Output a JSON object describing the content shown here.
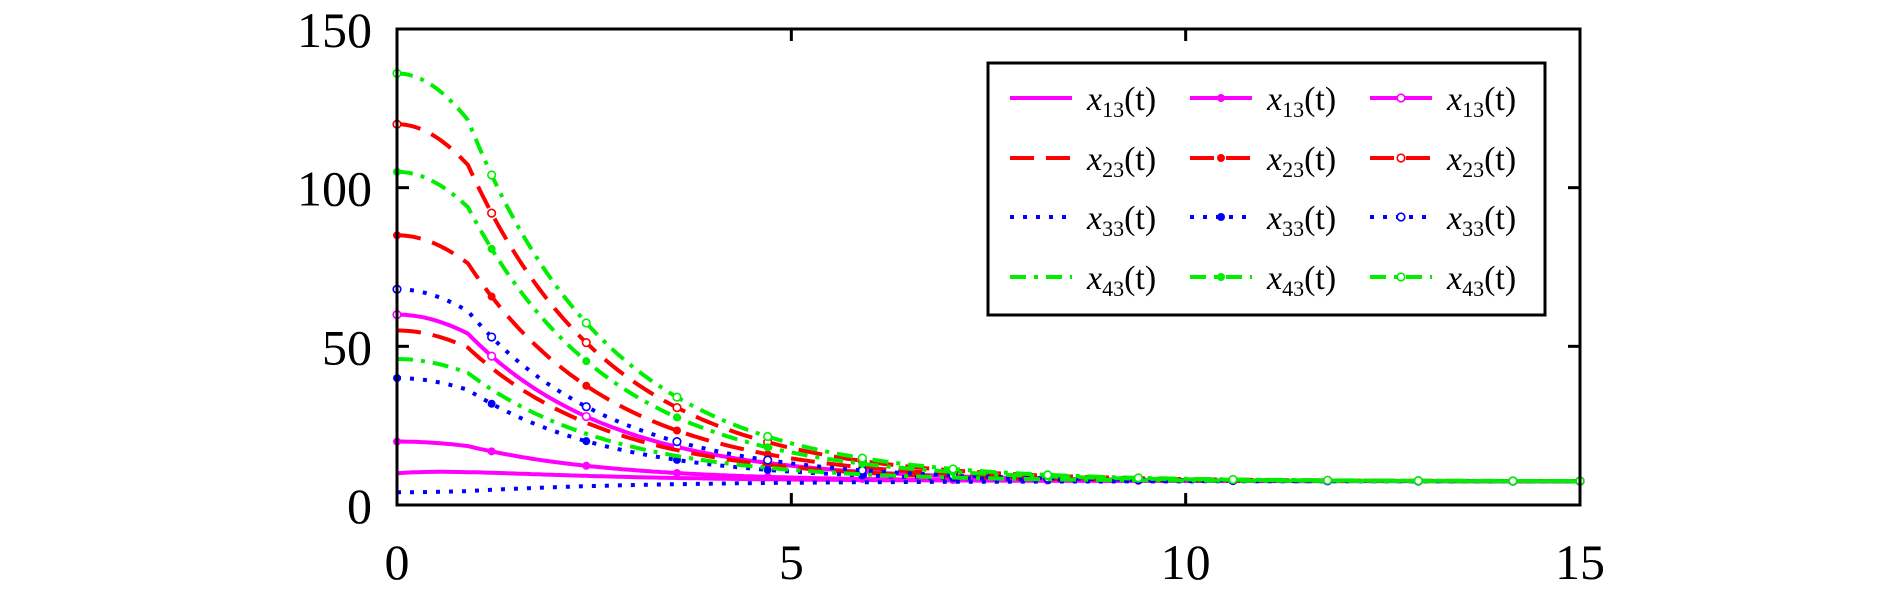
{
  "chart_data": {
    "type": "line",
    "title": "",
    "xlabel": "",
    "ylabel": "",
    "xlim": [
      0,
      15
    ],
    "ylim": [
      0,
      150
    ],
    "x_ticks": [
      "0",
      "5",
      "10",
      "15"
    ],
    "y_ticks": [
      "0",
      "50",
      "100",
      "150"
    ],
    "grid": false,
    "legend_position": "top-right",
    "legend_columns": 3,
    "series": [
      {
        "name": "x13(t)",
        "color": "#ff00ff",
        "style": "solid",
        "marker": "none",
        "x0": 0,
        "y0": 10,
        "yend": 7.5,
        "peak": {
          "x": 0.8,
          "y": 11
        }
      },
      {
        "name": "x13(t)",
        "color": "#ff00ff",
        "style": "solid",
        "marker": "dot",
        "x0": 0,
        "y0": 20,
        "yend": 7.5
      },
      {
        "name": "x13(t)",
        "color": "#ff00ff",
        "style": "solid",
        "marker": "circle",
        "x0": 0,
        "y0": 60,
        "yend": 7.5
      },
      {
        "name": "x23(t)",
        "color": "#ff0000",
        "style": "dashed",
        "marker": "none",
        "x0": 0,
        "y0": 55,
        "yend": 7.5
      },
      {
        "name": "x23(t)",
        "color": "#ff0000",
        "style": "dashed",
        "marker": "dot",
        "x0": 0,
        "y0": 85,
        "yend": 7.5
      },
      {
        "name": "x23(t)",
        "color": "#ff0000",
        "style": "dashed",
        "marker": "circle",
        "x0": 0,
        "y0": 120,
        "yend": 7.5
      },
      {
        "name": "x33(t)",
        "color": "#0000ff",
        "style": "dotted",
        "marker": "none",
        "x0": 0,
        "y0": 4,
        "yend": 7.5
      },
      {
        "name": "x33(t)",
        "color": "#0000ff",
        "style": "dotted",
        "marker": "dot",
        "x0": 0,
        "y0": 40,
        "yend": 7.5
      },
      {
        "name": "x33(t)",
        "color": "#0000ff",
        "style": "dotted",
        "marker": "circle",
        "x0": 0,
        "y0": 68,
        "yend": 7.5
      },
      {
        "name": "x43(t)",
        "color": "#00ee00",
        "style": "dashdot",
        "marker": "none",
        "x0": 0,
        "y0": 46,
        "yend": 7.5
      },
      {
        "name": "x43(t)",
        "color": "#00ee00",
        "style": "dashdot",
        "marker": "dot",
        "x0": 0,
        "y0": 105,
        "yend": 7.5
      },
      {
        "name": "x43(t)",
        "color": "#00ee00",
        "style": "dashdot",
        "marker": "circle",
        "x0": 0,
        "y0": 136,
        "yend": 7.5
      }
    ]
  },
  "legend": {
    "rows": [
      {
        "base": "x",
        "sub": "13",
        "arg": "(t)"
      },
      {
        "base": "x",
        "sub": "23",
        "arg": "(t)"
      },
      {
        "base": "x",
        "sub": "33",
        "arg": "(t)"
      },
      {
        "base": "x",
        "sub": "43",
        "arg": "(t)"
      }
    ]
  }
}
